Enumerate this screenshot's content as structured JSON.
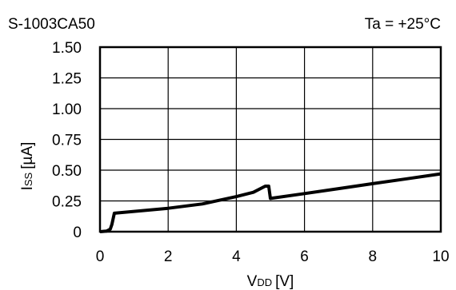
{
  "header": {
    "part_number": "S-1003CA50",
    "condition": "Ta = +25°C"
  },
  "chart_data": {
    "type": "line",
    "title": "",
    "xlabel_main": "V",
    "xlabel_sub": "DD",
    "xlabel_unit": "[V]",
    "ylabel_main": "I",
    "ylabel_sub": "SS",
    "ylabel_unit": "[µA]",
    "xlim": [
      0,
      10
    ],
    "ylim": [
      0,
      1.5
    ],
    "grid": true,
    "x_ticks": [
      0,
      2,
      4,
      6,
      8,
      10
    ],
    "x_tick_labels": [
      "0",
      "2",
      "4",
      "6",
      "8",
      "10"
    ],
    "y_ticks": [
      0,
      0.25,
      0.5,
      0.75,
      1.0,
      1.25,
      1.5
    ],
    "y_tick_labels": [
      "0",
      "0.25",
      "0.50",
      "0.75",
      "1.00",
      "1.25",
      "1.50"
    ],
    "series": [
      {
        "x": [
          0,
          0.2,
          0.3,
          0.35,
          0.42,
          1,
          2,
          3,
          4,
          4.5,
          4.85,
          4.95,
          5.0,
          6,
          7,
          8,
          9,
          10
        ],
        "y": [
          0,
          0.005,
          0.02,
          0.06,
          0.15,
          0.165,
          0.19,
          0.225,
          0.285,
          0.32,
          0.37,
          0.37,
          0.27,
          0.31,
          0.35,
          0.39,
          0.43,
          0.47
        ]
      }
    ]
  }
}
